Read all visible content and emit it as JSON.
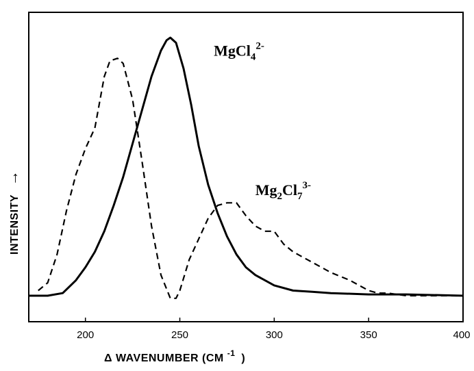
{
  "chart_data": {
    "type": "line",
    "title": "",
    "xlabel": "Δ WAVENUMBER (CM",
    "xlabel_exponent": "-1",
    "xlabel_close": ")",
    "ylabel": "INTENSITY",
    "ylabel_arrow": "→",
    "xlim": [
      170,
      400
    ],
    "ylim": [
      -0.1,
      1.02
    ],
    "xticks": [
      200,
      250,
      300,
      350,
      400
    ],
    "grid": false,
    "series": [
      {
        "name": "MgCl4 2-",
        "style": "solid",
        "x": [
          170,
          180,
          188,
          195,
          200,
          205,
          210,
          215,
          220,
          225,
          230,
          235,
          240,
          243,
          245,
          248,
          252,
          256,
          260,
          265,
          270,
          275,
          280,
          285,
          290,
          300,
          310,
          320,
          330,
          350,
          370,
          400
        ],
        "y": [
          0.0,
          0.0,
          0.01,
          0.06,
          0.11,
          0.17,
          0.25,
          0.35,
          0.46,
          0.59,
          0.72,
          0.85,
          0.95,
          0.99,
          1.0,
          0.98,
          0.88,
          0.74,
          0.58,
          0.43,
          0.32,
          0.23,
          0.16,
          0.11,
          0.08,
          0.04,
          0.02,
          0.015,
          0.01,
          0.005,
          0.005,
          0.0
        ]
      },
      {
        "name": "Mg2Cl7 3-",
        "style": "dashed",
        "x": [
          175,
          180,
          185,
          190,
          195,
          200,
          205,
          210,
          213,
          217,
          220,
          225,
          230,
          235,
          240,
          245,
          248,
          250,
          255,
          260,
          265,
          270,
          275,
          280,
          285,
          290,
          295,
          300,
          305,
          310,
          320,
          330,
          340,
          350,
          355,
          360,
          370,
          380,
          400
        ],
        "y": [
          0.02,
          0.05,
          0.16,
          0.33,
          0.47,
          0.57,
          0.65,
          0.85,
          0.91,
          0.92,
          0.9,
          0.76,
          0.52,
          0.27,
          0.08,
          -0.01,
          -0.01,
          0.02,
          0.14,
          0.22,
          0.3,
          0.35,
          0.36,
          0.36,
          0.31,
          0.27,
          0.25,
          0.25,
          0.2,
          0.17,
          0.13,
          0.09,
          0.06,
          0.02,
          0.01,
          0.01,
          0.0,
          0.0,
          0.0
        ]
      }
    ],
    "annotations": [
      {
        "base": "MgCl",
        "sub": "4",
        "sup": "2-",
        "x": 268,
        "y": 0.93
      },
      {
        "base": "Mg",
        "sub1": "2",
        "mid": "Cl",
        "sub": "7",
        "sup": "3-",
        "x": 290,
        "y": 0.39
      }
    ]
  }
}
